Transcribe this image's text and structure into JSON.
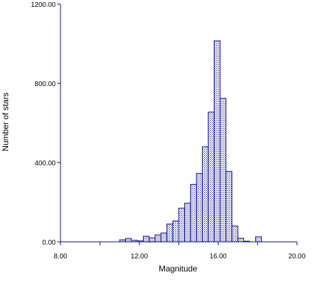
{
  "chart_data": {
    "type": "bar",
    "title": "",
    "xlabel": "Magnitude",
    "ylabel": "Number of stars",
    "xlim": [
      8,
      20
    ],
    "ylim": [
      0,
      1200
    ],
    "x_ticks": [
      8,
      10,
      12,
      14,
      16,
      18,
      20
    ],
    "x_tick_labels": [
      "8.00",
      "",
      "12.00",
      "",
      "16.00",
      "",
      "20.00"
    ],
    "y_ticks": [
      0,
      400,
      800,
      1200
    ],
    "y_tick_labels": [
      "0.00",
      "400.00",
      "800.00",
      "1200.00"
    ],
    "bin_width": 0.3,
    "bins": [
      {
        "x": 11.0,
        "value": 10
      },
      {
        "x": 11.3,
        "value": 17
      },
      {
        "x": 11.6,
        "value": 8
      },
      {
        "x": 11.9,
        "value": 5
      },
      {
        "x": 12.2,
        "value": 28
      },
      {
        "x": 12.5,
        "value": 20
      },
      {
        "x": 12.8,
        "value": 35
      },
      {
        "x": 13.1,
        "value": 45
      },
      {
        "x": 13.4,
        "value": 90
      },
      {
        "x": 13.7,
        "value": 105
      },
      {
        "x": 14.0,
        "value": 170
      },
      {
        "x": 14.3,
        "value": 195
      },
      {
        "x": 14.6,
        "value": 290
      },
      {
        "x": 14.9,
        "value": 345
      },
      {
        "x": 15.2,
        "value": 480
      },
      {
        "x": 15.5,
        "value": 655
      },
      {
        "x": 15.8,
        "value": 1015
      },
      {
        "x": 16.1,
        "value": 725
      },
      {
        "x": 16.4,
        "value": 355
      },
      {
        "x": 16.7,
        "value": 80
      },
      {
        "x": 17.0,
        "value": 18
      },
      {
        "x": 17.3,
        "value": 3
      },
      {
        "x": 17.6,
        "value": 0
      },
      {
        "x": 17.9,
        "value": 25
      }
    ],
    "grid": false,
    "legend": "none",
    "colors": {
      "bar_edge": "#0a0a82",
      "bar_dots": "#0a0a82",
      "axis": "#0a0a82",
      "text": "#000000",
      "background": "#ffffff"
    }
  }
}
